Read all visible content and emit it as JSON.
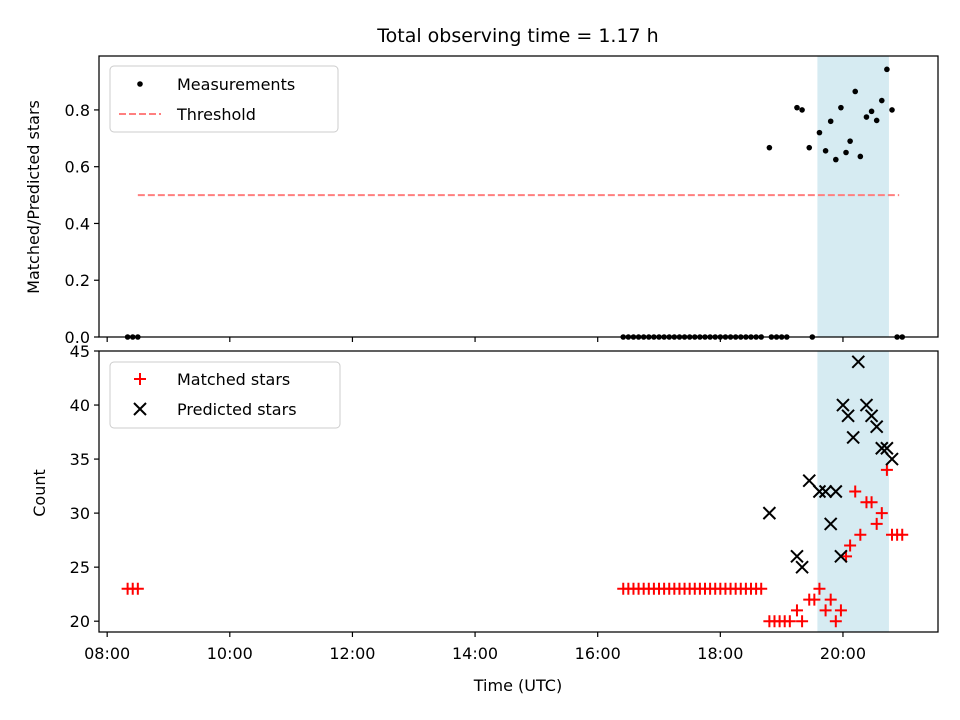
{
  "chart_data": [
    {
      "type": "scatter",
      "title": "Total observing time = 1.17 h",
      "ylabel": "Matched/Predicted stars",
      "xlim": [
        "07:52",
        "21:33"
      ],
      "ylim": [
        0,
        0.99
      ],
      "yticks": [
        "0.0",
        "0.2",
        "0.4",
        "0.6",
        "0.8"
      ],
      "shaded_interval": [
        "19:35",
        "20:45"
      ],
      "shade_color": "#add8e6",
      "legend_position": "upper-left",
      "series": [
        {
          "name": "Measurements",
          "marker": "dot",
          "color": "#000000",
          "points": [
            [
              "08:20",
              0
            ],
            [
              "08:25",
              0
            ],
            [
              "08:30",
              0
            ],
            [
              "16:25",
              0
            ],
            [
              "16:30",
              0
            ],
            [
              "16:35",
              0
            ],
            [
              "16:40",
              0
            ],
            [
              "16:45",
              0
            ],
            [
              "16:50",
              0
            ],
            [
              "16:55",
              0
            ],
            [
              "17:00",
              0
            ],
            [
              "17:05",
              0
            ],
            [
              "17:10",
              0
            ],
            [
              "17:15",
              0
            ],
            [
              "17:20",
              0
            ],
            [
              "17:25",
              0
            ],
            [
              "17:30",
              0
            ],
            [
              "17:35",
              0
            ],
            [
              "17:40",
              0
            ],
            [
              "17:45",
              0
            ],
            [
              "17:50",
              0
            ],
            [
              "17:55",
              0
            ],
            [
              "18:00",
              0
            ],
            [
              "18:05",
              0
            ],
            [
              "18:10",
              0
            ],
            [
              "18:15",
              0
            ],
            [
              "18:20",
              0
            ],
            [
              "18:25",
              0
            ],
            [
              "18:30",
              0
            ],
            [
              "18:35",
              0
            ],
            [
              "18:40",
              0
            ],
            [
              "18:50",
              0
            ],
            [
              "18:55",
              0
            ],
            [
              "19:00",
              0
            ],
            [
              "19:05",
              0
            ],
            [
              "19:30",
              0
            ],
            [
              "18:48",
              0.667
            ],
            [
              "19:15",
              0.808
            ],
            [
              "19:20",
              0.8
            ],
            [
              "19:27",
              0.667
            ],
            [
              "19:37",
              0.72
            ],
            [
              "19:43",
              0.656
            ],
            [
              "19:48",
              0.76
            ],
            [
              "19:53",
              0.625
            ],
            [
              "19:58",
              0.808
            ],
            [
              "20:03",
              0.65
            ],
            [
              "20:07",
              0.69
            ],
            [
              "20:12",
              0.865
            ],
            [
              "20:17",
              0.636
            ],
            [
              "20:23",
              0.775
            ],
            [
              "20:28",
              0.795
            ],
            [
              "20:33",
              0.763
            ],
            [
              "20:38",
              0.833
            ],
            [
              "20:43",
              0.943
            ],
            [
              "20:48",
              0.8
            ],
            [
              "20:53",
              0
            ],
            [
              "20:58",
              0
            ]
          ]
        },
        {
          "name": "Threshold",
          "marker": "dashed-line",
          "color": "#ff7f7f",
          "points": [
            [
              "08:30",
              0.5
            ],
            [
              "20:55",
              0.5
            ]
          ]
        }
      ]
    },
    {
      "type": "scatter",
      "xlabel": "Time (UTC)",
      "ylabel": "Count",
      "xlim": [
        "07:52",
        "21:33"
      ],
      "ylim": [
        19,
        45
      ],
      "yticks": [
        "20",
        "25",
        "30",
        "35",
        "40",
        "45"
      ],
      "xticks": [
        "08:00",
        "10:00",
        "12:00",
        "14:00",
        "16:00",
        "18:00",
        "20:00"
      ],
      "shaded_interval": [
        "19:35",
        "20:45"
      ],
      "shade_color": "#add8e6",
      "legend_position": "upper-left",
      "series": [
        {
          "name": "Matched stars",
          "marker": "plus",
          "color": "#ff0000",
          "points": [
            [
              "08:20",
              23
            ],
            [
              "08:25",
              23
            ],
            [
              "08:30",
              23
            ],
            [
              "16:25",
              23
            ],
            [
              "16:30",
              23
            ],
            [
              "16:35",
              23
            ],
            [
              "16:40",
              23
            ],
            [
              "16:45",
              23
            ],
            [
              "16:50",
              23
            ],
            [
              "16:55",
              23
            ],
            [
              "17:00",
              23
            ],
            [
              "17:05",
              23
            ],
            [
              "17:10",
              23
            ],
            [
              "17:15",
              23
            ],
            [
              "17:20",
              23
            ],
            [
              "17:25",
              23
            ],
            [
              "17:30",
              23
            ],
            [
              "17:35",
              23
            ],
            [
              "17:40",
              23
            ],
            [
              "17:45",
              23
            ],
            [
              "17:50",
              23
            ],
            [
              "17:55",
              23
            ],
            [
              "18:00",
              23
            ],
            [
              "18:05",
              23
            ],
            [
              "18:10",
              23
            ],
            [
              "18:15",
              23
            ],
            [
              "18:20",
              23
            ],
            [
              "18:25",
              23
            ],
            [
              "18:30",
              23
            ],
            [
              "18:35",
              23
            ],
            [
              "18:40",
              23
            ],
            [
              "18:48",
              20
            ],
            [
              "18:53",
              20
            ],
            [
              "18:58",
              20
            ],
            [
              "19:03",
              20
            ],
            [
              "19:08",
              20
            ],
            [
              "19:15",
              21
            ],
            [
              "19:20",
              20
            ],
            [
              "19:27",
              22
            ],
            [
              "19:32",
              22
            ],
            [
              "19:37",
              23
            ],
            [
              "19:43",
              21
            ],
            [
              "19:48",
              22
            ],
            [
              "19:53",
              20
            ],
            [
              "19:58",
              21
            ],
            [
              "20:03",
              26
            ],
            [
              "20:07",
              27
            ],
            [
              "20:12",
              32
            ],
            [
              "20:17",
              28
            ],
            [
              "20:23",
              31
            ],
            [
              "20:28",
              31
            ],
            [
              "20:33",
              29
            ],
            [
              "20:38",
              30
            ],
            [
              "20:43",
              34
            ],
            [
              "20:48",
              28
            ],
            [
              "20:53",
              28
            ],
            [
              "20:58",
              28
            ]
          ]
        },
        {
          "name": "Predicted stars",
          "marker": "x",
          "color": "#000000",
          "points": [
            [
              "18:48",
              30
            ],
            [
              "19:15",
              26
            ],
            [
              "19:20",
              25
            ],
            [
              "19:27",
              33
            ],
            [
              "19:37",
              32
            ],
            [
              "19:43",
              32
            ],
            [
              "19:48",
              29
            ],
            [
              "19:53",
              32
            ],
            [
              "19:58",
              26
            ],
            [
              "20:00",
              40
            ],
            [
              "20:05",
              39
            ],
            [
              "20:10",
              37
            ],
            [
              "20:15",
              44
            ],
            [
              "20:23",
              40
            ],
            [
              "20:28",
              39
            ],
            [
              "20:33",
              38
            ],
            [
              "20:38",
              36
            ],
            [
              "20:43",
              36
            ],
            [
              "20:48",
              35
            ]
          ]
        }
      ]
    }
  ]
}
